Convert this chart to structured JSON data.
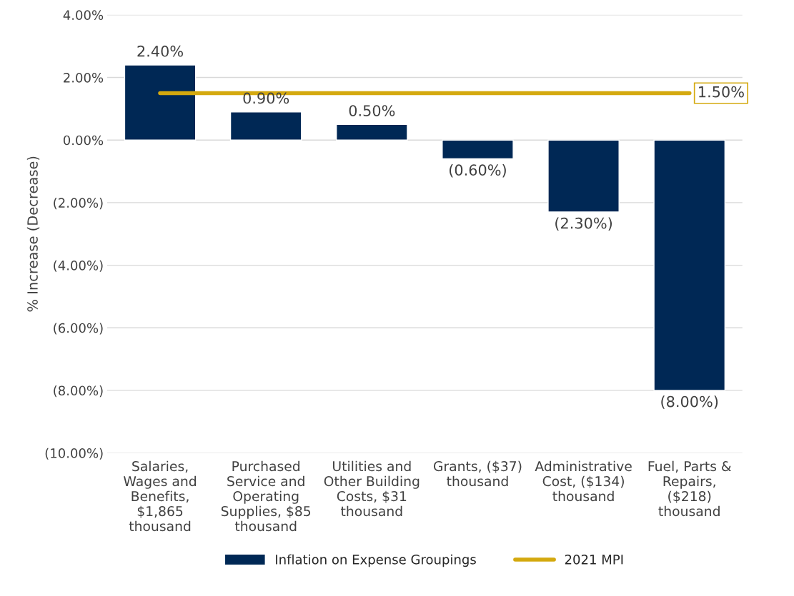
{
  "chart_data": {
    "type": "bar",
    "ylabel": "% Increase (Decrease)",
    "categories": [
      "Salaries,\nWages and\nBenefits,\n$1,865\nthousand",
      "Purchased\nService and\nOperating\nSupplies, $85\nthousand",
      "Utilities and\nOther Building\nCosts, $31\nthousand",
      "Grants, ($37)\nthousand",
      "Administrative\nCost, ($134)\nthousand",
      "Fuel, Parts &\nRepairs,\n($218)\nthousand"
    ],
    "series": [
      {
        "name": "Inflation on Expense Groupings",
        "color": "#002855",
        "values": [
          2.4,
          0.9,
          0.5,
          -0.6,
          -2.3,
          -8.0
        ],
        "value_labels": [
          "2.40%",
          "0.90%",
          "0.50%",
          "(0.60%)",
          "(2.30%)",
          "(8.00%)"
        ]
      },
      {
        "name": "2021 MPI",
        "type": "line",
        "color": "#d4a90f",
        "values": [
          1.5,
          1.5,
          1.5,
          1.5,
          1.5,
          1.5
        ],
        "value_labels": [
          null,
          null,
          null,
          null,
          null,
          "1.50%"
        ]
      }
    ],
    "ylim": [
      -10,
      4
    ],
    "yticks": [
      {
        "value": 4,
        "label": "4.00%"
      },
      {
        "value": 2,
        "label": "2.00%"
      },
      {
        "value": 0,
        "label": "0.00%"
      },
      {
        "value": -2,
        "label": "(2.00%)"
      },
      {
        "value": -4,
        "label": "(4.00%)"
      },
      {
        "value": -6,
        "label": "(6.00%)"
      },
      {
        "value": -8,
        "label": "(8.00%)"
      },
      {
        "value": -10,
        "label": "(10.00%)"
      }
    ],
    "grid": "y",
    "legend": "bottom",
    "marker": "none",
    "line_style": "solid"
  }
}
